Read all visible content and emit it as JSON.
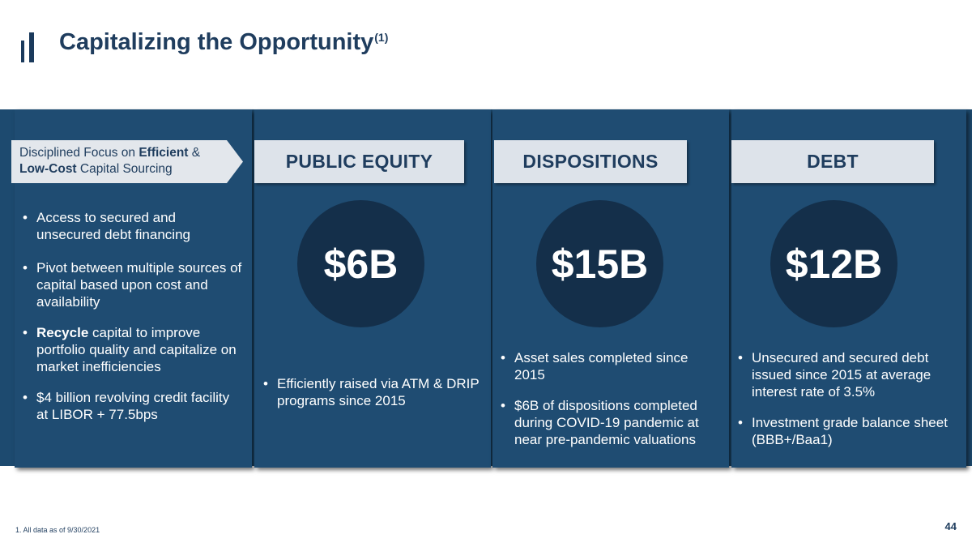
{
  "slide": {
    "title": "Capitalizing the Opportunity",
    "title_superscript": "(1)",
    "page_number": "44",
    "footnote": "1. All data as of 9/30/2021"
  },
  "callout": {
    "prefix": "Disciplined Focus on ",
    "bold1": "Efficient",
    "mid": " &",
    "bold2": "Low-Cost",
    "suffix": " Capital Sourcing"
  },
  "left_column": {
    "bullets": [
      {
        "pre": "",
        "bold": "",
        "text": "Access to secured and unsecured debt financing"
      },
      {
        "pre": "",
        "bold": "",
        "text": "Pivot between multiple sources of capital based upon cost and availability"
      },
      {
        "pre": "",
        "bold": "Recycle",
        "text": " capital to improve portfolio quality and capitalize on market inefficiencies"
      },
      {
        "pre": "",
        "bold": "",
        "text": "$4 billion revolving credit facility at LIBOR + 77.5bps"
      }
    ]
  },
  "columns": [
    {
      "header": "PUBLIC EQUITY",
      "amount": "$6B",
      "bullets": [
        "Efficiently raised via ATM & DRIP programs since 2015"
      ]
    },
    {
      "header": "DISPOSITIONS",
      "amount": "$15B",
      "bullets": [
        "Asset sales completed since 2015",
        "$6B of dispositions completed during COVID-19 pandemic at near pre-pandemic valuations"
      ]
    },
    {
      "header": "DEBT",
      "amount": "$12B",
      "bullets": [
        "Unsecured and secured debt issued since 2015 at average interest rate of 3.5%",
        "Investment grade balance sheet (BBB+/Baa1)"
      ]
    }
  ],
  "colors": {
    "navy_text": "#1f3d5e",
    "panel_blue": "#1f4c72",
    "circle_dark": "#142f4a",
    "header_gray": "#dde3ea"
  }
}
